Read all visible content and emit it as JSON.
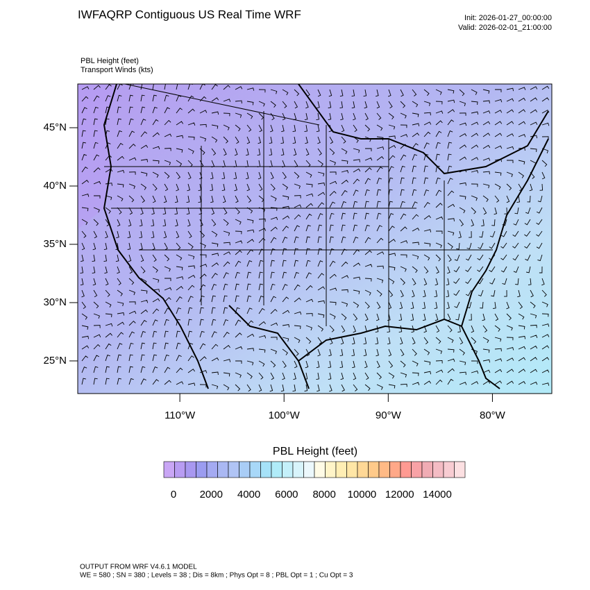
{
  "header": {
    "title": "IWFAQRP Contiguous US Real Time WRF",
    "init": "Init: 2026-01-27_00:00:00",
    "valid": "Valid: 2026-02-01_21:00:00"
  },
  "fields": [
    "PBL Height   (feet)",
    "Transport Winds   (kts)"
  ],
  "map": {
    "xlim": [
      -119.8,
      -74.3
    ],
    "ylim": [
      22.2,
      48.75
    ],
    "yticks": [
      {
        "value": 45,
        "label": "45°N"
      },
      {
        "value": 40,
        "label": "40°N"
      },
      {
        "value": 35,
        "label": "35°N"
      },
      {
        "value": 30,
        "label": "30°N"
      },
      {
        "value": 25,
        "label": "25°N"
      }
    ],
    "xticks": [
      {
        "value": -110,
        "label": "110°W"
      },
      {
        "value": -100,
        "label": "100°W"
      },
      {
        "value": -90,
        "label": "90°W"
      },
      {
        "value": -80,
        "label": "80°W"
      }
    ]
  },
  "colorbar": {
    "title": "PBL Height  (feet)",
    "ticks": [
      0,
      2000,
      4000,
      6000,
      8000,
      10000,
      12000,
      14000
    ],
    "colors": [
      "#c9a6f5",
      "#b89cf2",
      "#a898f0",
      "#9b9cf0",
      "#a4aaf2",
      "#aab8f3",
      "#b0c4f5",
      "#a9cdf6",
      "#a8d8f8",
      "#a6e2f8",
      "#b0ecf9",
      "#c4f0fa",
      "#d8f4fb",
      "#ecf8fc",
      "#fffbe6",
      "#fff4c8",
      "#ffeeb4",
      "#ffe6a6",
      "#ffd896",
      "#ffca8a",
      "#ffba86",
      "#ffa888",
      "#ff9a92",
      "#f8a2a6",
      "#f0acb4",
      "#f4bcc4",
      "#f8ccd2",
      "#fce0e2"
    ]
  },
  "footer": [
    "OUTPUT FROM WRF V4.6.1 MODEL",
    "WE = 580 ; SN = 380 ; Levels = 38 ; Dis = 8km ; Phys Opt = 8 ; PBL Opt = 1 ; Cu Opt = 3"
  ]
}
